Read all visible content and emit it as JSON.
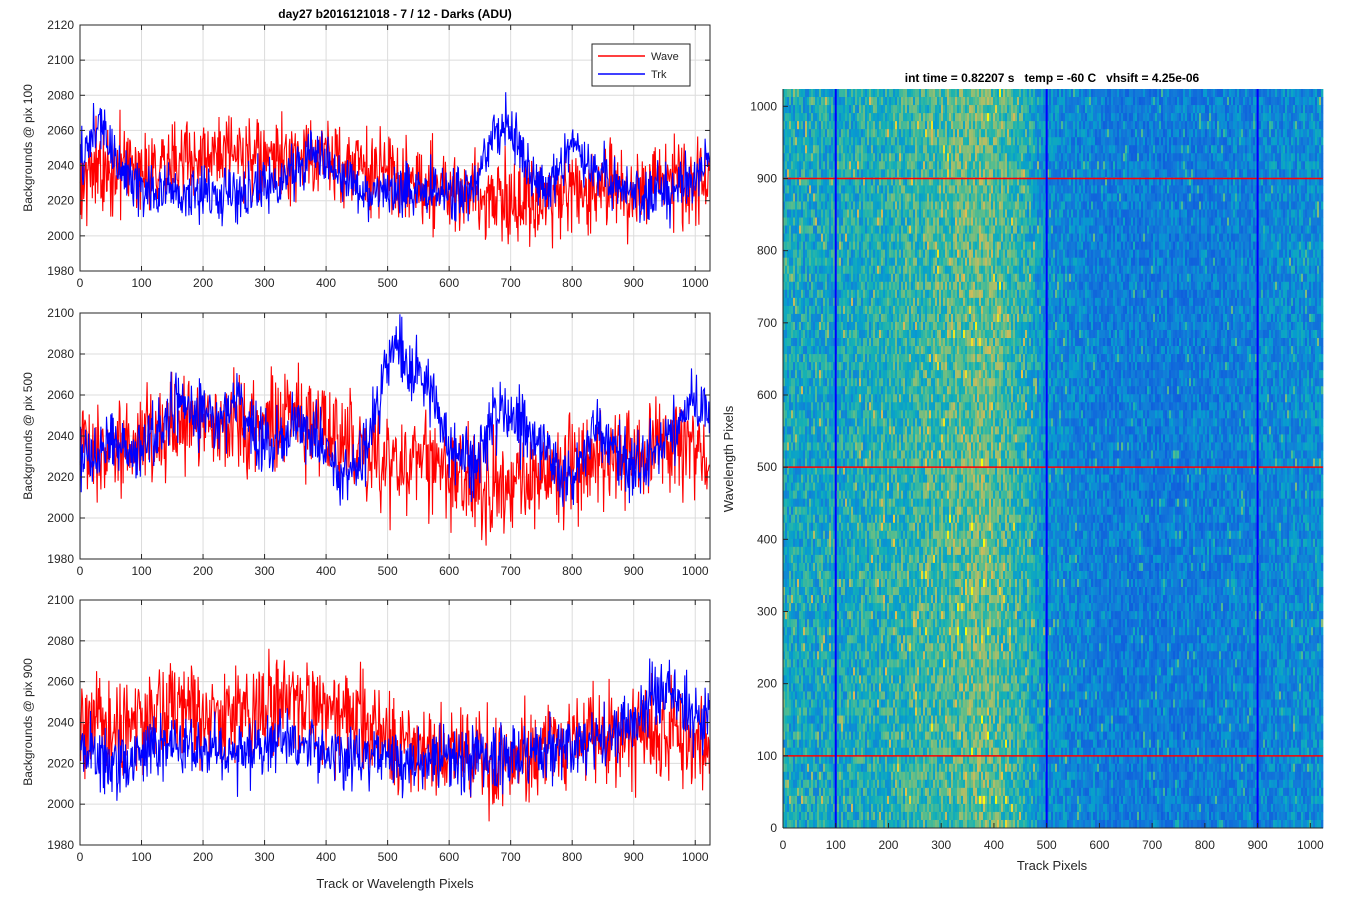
{
  "figure_title": "day27 b2016121018 - 7 / 12 - Darks (ADU)",
  "chart_data": [
    {
      "type": "line",
      "xlabel": "",
      "ylabel": "Backgrounds @ pix 100",
      "xlim": [
        0,
        1024
      ],
      "ylim": [
        1980,
        2120
      ],
      "xticks": [
        0,
        100,
        200,
        300,
        400,
        500,
        600,
        700,
        800,
        900,
        1000
      ],
      "yticks": [
        1980,
        2000,
        2020,
        2040,
        2060,
        2080,
        2100,
        2120
      ],
      "grid": true,
      "legend": {
        "position": "top-right",
        "entries": [
          "Wave",
          "Trk"
        ]
      },
      "series": [
        {
          "name": "Wave",
          "color": "#ff0000",
          "x": [
            0,
            32,
            64,
            96,
            128,
            160,
            192,
            224,
            256,
            288,
            320,
            352,
            384,
            416,
            448,
            480,
            512,
            544,
            576,
            608,
            640,
            672,
            704,
            736,
            768,
            800,
            832,
            864,
            896,
            928,
            960,
            992,
            1023
          ],
          "y": [
            2035,
            2036,
            2038,
            2040,
            2042,
            2043,
            2044,
            2045,
            2044,
            2043,
            2042,
            2044,
            2045,
            2043,
            2040,
            2036,
            2033,
            2030,
            2028,
            2026,
            2024,
            2022,
            2021,
            2021,
            2022,
            2024,
            2026,
            2027,
            2026,
            2027,
            2030,
            2032,
            2030
          ],
          "noise": 12
        },
        {
          "name": "Trk",
          "color": "#0000ff",
          "x": [
            0,
            32,
            64,
            96,
            128,
            160,
            192,
            224,
            256,
            288,
            320,
            352,
            384,
            416,
            448,
            480,
            512,
            544,
            576,
            608,
            640,
            672,
            704,
            736,
            768,
            800,
            832,
            864,
            896,
            928,
            960,
            992,
            1023
          ],
          "y": [
            2040,
            2066,
            2038,
            2028,
            2025,
            2024,
            2023,
            2024,
            2025,
            2026,
            2030,
            2040,
            2048,
            2038,
            2027,
            2024,
            2024,
            2027,
            2026,
            2025,
            2026,
            2058,
            2060,
            2030,
            2028,
            2052,
            2042,
            2030,
            2025,
            2024,
            2026,
            2028,
            2048
          ],
          "noise": 8
        }
      ]
    },
    {
      "type": "line",
      "xlabel": "",
      "ylabel": "Backgrounds @ pix 500",
      "xlim": [
        0,
        1024
      ],
      "ylim": [
        1980,
        2100
      ],
      "xticks": [
        0,
        100,
        200,
        300,
        400,
        500,
        600,
        700,
        800,
        900,
        1000
      ],
      "yticks": [
        1980,
        2000,
        2020,
        2040,
        2060,
        2080,
        2100
      ],
      "grid": true,
      "series": [
        {
          "name": "Wave",
          "color": "#ff0000",
          "x": [
            0,
            32,
            64,
            96,
            128,
            160,
            192,
            224,
            256,
            288,
            320,
            352,
            384,
            416,
            448,
            480,
            512,
            544,
            576,
            608,
            640,
            672,
            704,
            736,
            768,
            800,
            832,
            864,
            896,
            928,
            960,
            992,
            1023
          ],
          "y": [
            2035,
            2036,
            2037,
            2040,
            2044,
            2046,
            2047,
            2046,
            2046,
            2048,
            2049,
            2048,
            2046,
            2040,
            2034,
            2030,
            2028,
            2026,
            2024,
            2022,
            2020,
            2018,
            2017,
            2018,
            2022,
            2028,
            2030,
            2029,
            2028,
            2032,
            2036,
            2034,
            2030
          ],
          "noise": 12
        },
        {
          "name": "Trk",
          "color": "#0000ff",
          "x": [
            0,
            32,
            64,
            96,
            128,
            160,
            192,
            224,
            256,
            288,
            320,
            352,
            384,
            416,
            448,
            480,
            512,
            544,
            576,
            608,
            640,
            672,
            704,
            736,
            768,
            800,
            832,
            864,
            896,
            928,
            960,
            992,
            1023
          ],
          "y": [
            2030,
            2032,
            2038,
            2034,
            2040,
            2060,
            2052,
            2046,
            2058,
            2036,
            2040,
            2046,
            2040,
            2028,
            2022,
            2050,
            2090,
            2072,
            2058,
            2032,
            2026,
            2052,
            2050,
            2042,
            2024,
            2020,
            2042,
            2034,
            2025,
            2028,
            2040,
            2054,
            2055
          ],
          "noise": 8
        }
      ]
    },
    {
      "type": "line",
      "xlabel": "Track or Wavelength Pixels",
      "ylabel": "Backgrounds @ pix 900",
      "xlim": [
        0,
        1024
      ],
      "ylim": [
        1980,
        2100
      ],
      "xticks": [
        0,
        100,
        200,
        300,
        400,
        500,
        600,
        700,
        800,
        900,
        1000
      ],
      "yticks": [
        1980,
        2000,
        2020,
        2040,
        2060,
        2080,
        2100
      ],
      "grid": true,
      "series": [
        {
          "name": "Wave",
          "color": "#ff0000",
          "x": [
            0,
            32,
            64,
            96,
            128,
            160,
            192,
            224,
            256,
            288,
            320,
            352,
            384,
            416,
            448,
            480,
            512,
            544,
            576,
            608,
            640,
            672,
            704,
            736,
            768,
            800,
            832,
            864,
            896,
            928,
            960,
            992,
            1023
          ],
          "y": [
            2035,
            2034,
            2036,
            2040,
            2044,
            2048,
            2047,
            2046,
            2045,
            2046,
            2048,
            2047,
            2045,
            2044,
            2040,
            2034,
            2030,
            2027,
            2025,
            2024,
            2023,
            2022,
            2022,
            2024,
            2028,
            2032,
            2034,
            2033,
            2034,
            2036,
            2035,
            2032,
            2030
          ],
          "noise": 12
        },
        {
          "name": "Trk",
          "color": "#0000ff",
          "x": [
            0,
            32,
            64,
            96,
            128,
            160,
            192,
            224,
            256,
            288,
            320,
            352,
            384,
            416,
            448,
            480,
            512,
            544,
            576,
            608,
            640,
            672,
            704,
            736,
            768,
            800,
            832,
            864,
            896,
            928,
            960,
            992,
            1023
          ],
          "y": [
            2030,
            2022,
            2018,
            2025,
            2028,
            2028,
            2026,
            2025,
            2026,
            2030,
            2030,
            2028,
            2026,
            2026,
            2024,
            2022,
            2022,
            2022,
            2022,
            2022,
            2022,
            2024,
            2024,
            2025,
            2026,
            2027,
            2030,
            2034,
            2040,
            2052,
            2054,
            2046,
            2040
          ],
          "noise": 8
        }
      ]
    },
    {
      "type": "heatmap",
      "title": "int time = 0.82207 s   temp = -60 C   vhsift = 4.25e-06",
      "xlabel": "Track Pixels",
      "ylabel": "Wavelength Pixels",
      "xlim": [
        0,
        1024
      ],
      "ylim": [
        0,
        1024
      ],
      "xticks": [
        0,
        100,
        200,
        300,
        400,
        500,
        600,
        700,
        800,
        900,
        1000
      ],
      "yticks": [
        0,
        100,
        200,
        300,
        400,
        500,
        600,
        700,
        800,
        900,
        1000
      ],
      "colormap": "parula",
      "column_profile": {
        "x": [
          0,
          100,
          200,
          300,
          380,
          460,
          500,
          600,
          700,
          800,
          900,
          1024
        ],
        "level": [
          0.55,
          0.55,
          0.6,
          0.65,
          0.72,
          0.6,
          0.45,
          0.38,
          0.36,
          0.37,
          0.4,
          0.45
        ]
      },
      "vertical_lines": [
        {
          "x": 100,
          "color": "#0000ff"
        },
        {
          "x": 500,
          "color": "#0000ff"
        },
        {
          "x": 900,
          "color": "#0000ff"
        }
      ],
      "horizontal_lines": [
        {
          "y": 100,
          "color": "#ff0000"
        },
        {
          "y": 500,
          "color": "#ff0000"
        },
        {
          "y": 900,
          "color": "#ff0000"
        }
      ]
    }
  ]
}
